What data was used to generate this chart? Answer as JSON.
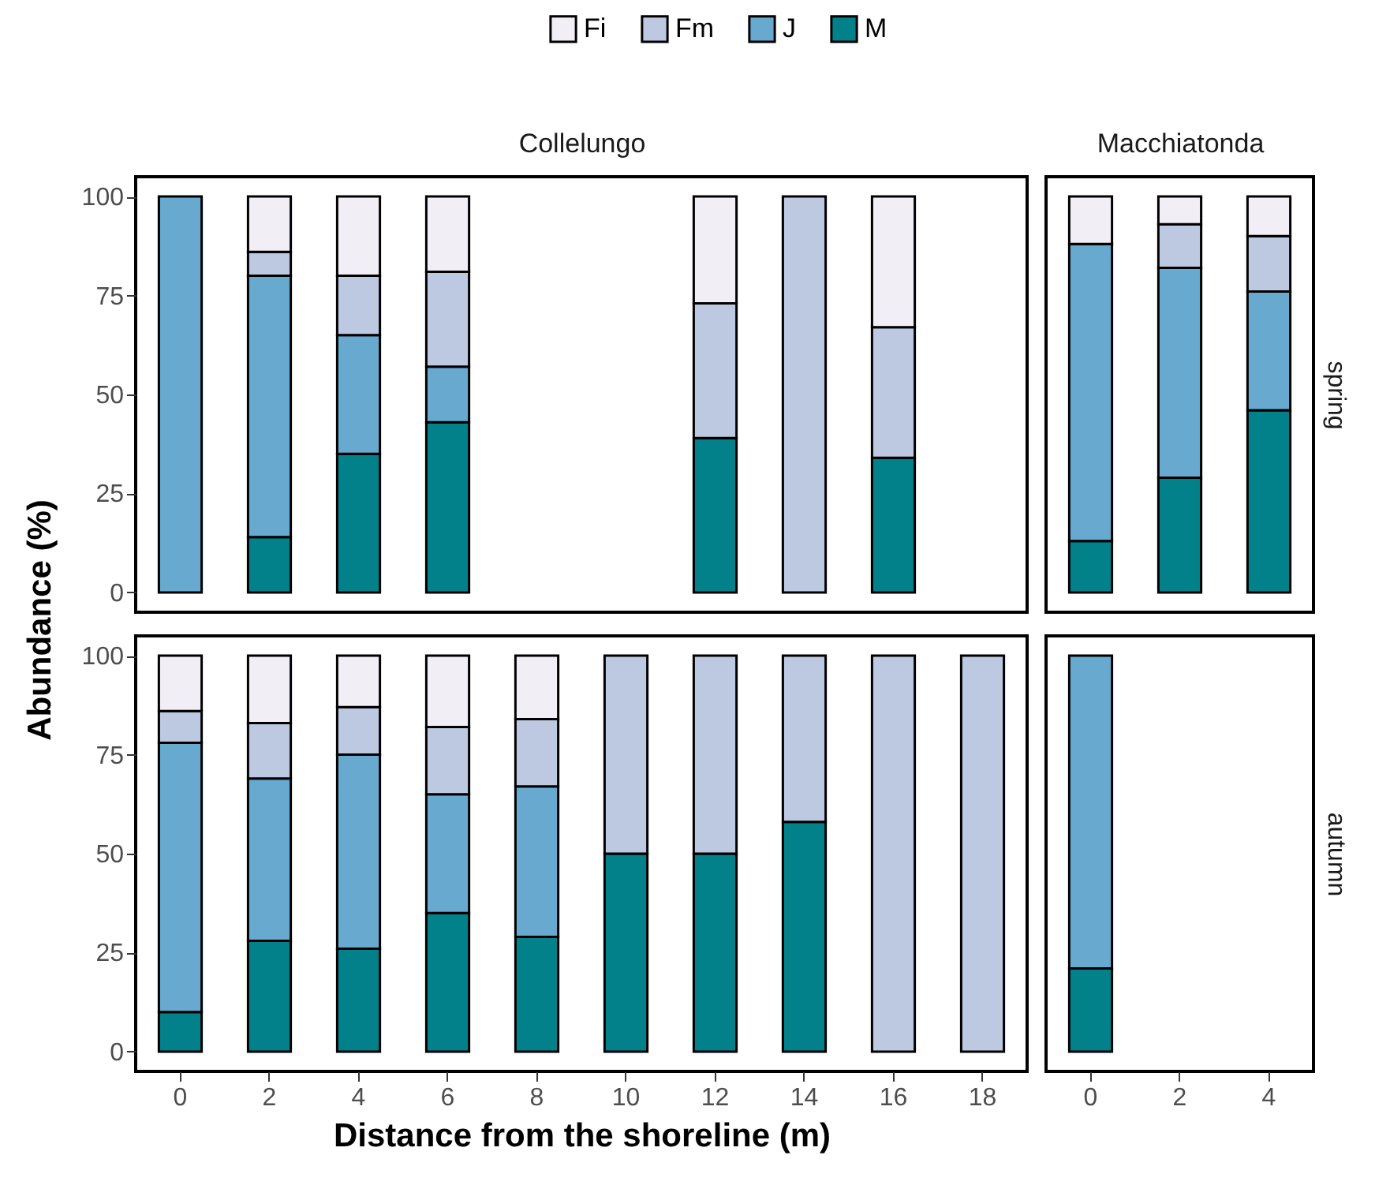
{
  "chart_data": [
    {
      "type": "bar",
      "stacked": true,
      "title": "Collelungo",
      "ylabel": "Abundance (%)",
      "legend": "top",
      "tick_labels": "y",
      "ylim": [
        -5,
        105
      ],
      "yticks": [
        0,
        25,
        50,
        75,
        100
      ],
      "categories": [
        "0",
        "2",
        "4",
        "6",
        "8",
        "10",
        "12",
        "14",
        "16",
        "18"
      ],
      "series": [
        {
          "name": "M",
          "color": "#02818a",
          "values": [
            null,
            14,
            35,
            43,
            null,
            null,
            39,
            null,
            34,
            null
          ]
        },
        {
          "name": "J",
          "color": "#67a9cf",
          "values": [
            100,
            66,
            30,
            14,
            null,
            null,
            null,
            null,
            null,
            null
          ]
        },
        {
          "name": "Fm",
          "color": "#bdc9e1",
          "values": [
            null,
            6,
            15,
            24,
            null,
            null,
            34,
            100,
            33,
            null
          ]
        },
        {
          "name": "Fi",
          "color": "#f1eef6",
          "values": [
            null,
            14,
            20,
            19,
            null,
            null,
            27,
            null,
            33,
            null
          ]
        }
      ]
    },
    {
      "type": "bar",
      "stacked": true,
      "title": "Macchiatonda",
      "y2label": "spring",
      "tick_labels": false,
      "ylim": [
        -5,
        105
      ],
      "yticks": [
        0,
        25,
        50,
        75,
        100
      ],
      "categories": [
        "0",
        "2",
        "4"
      ],
      "series": [
        {
          "color": "#02818a",
          "values": [
            13,
            29,
            46
          ]
        },
        {
          "color": "#67a9cf",
          "values": [
            75,
            53,
            30
          ]
        },
        {
          "color": "#bdc9e1",
          "values": [
            null,
            11,
            14
          ]
        },
        {
          "color": "#f1eef6",
          "values": [
            12,
            7,
            10
          ]
        }
      ]
    },
    {
      "type": "bar",
      "stacked": true,
      "xlabel": "Distance from the shoreline (m)",
      "ylim": [
        -5,
        105
      ],
      "yticks": [
        0,
        25,
        50,
        75,
        100
      ],
      "categories": [
        "0",
        "2",
        "4",
        "6",
        "8",
        "10",
        "12",
        "14",
        "16",
        "18"
      ],
      "series": [
        {
          "color": "#02818a",
          "values": [
            10,
            28,
            26,
            35,
            29,
            50,
            50,
            58,
            null,
            null
          ]
        },
        {
          "color": "#67a9cf",
          "values": [
            68,
            41,
            49,
            30,
            38,
            null,
            null,
            null,
            null,
            null
          ]
        },
        {
          "color": "#bdc9e1",
          "values": [
            8,
            14,
            12,
            17,
            17,
            50,
            50,
            42,
            100,
            100
          ]
        },
        {
          "color": "#f1eef6",
          "values": [
            14,
            17,
            13,
            18,
            16,
            null,
            null,
            null,
            null,
            null
          ]
        }
      ]
    },
    {
      "type": "bar",
      "stacked": true,
      "y2label": "autumn",
      "tick_labels": "x",
      "ylim": [
        -5,
        105
      ],
      "yticks": [
        0,
        25,
        50,
        75,
        100
      ],
      "categories": [
        "0",
        "2",
        "4"
      ],
      "series": [
        {
          "color": "#02818a",
          "values": [
            21,
            null,
            null
          ]
        },
        {
          "color": "#67a9cf",
          "values": [
            79,
            null,
            null
          ]
        },
        {
          "color": "#bdc9e1",
          "values": [
            null,
            null,
            null
          ]
        },
        {
          "color": "#f1eef6",
          "values": [
            null,
            null,
            null
          ]
        }
      ]
    }
  ]
}
